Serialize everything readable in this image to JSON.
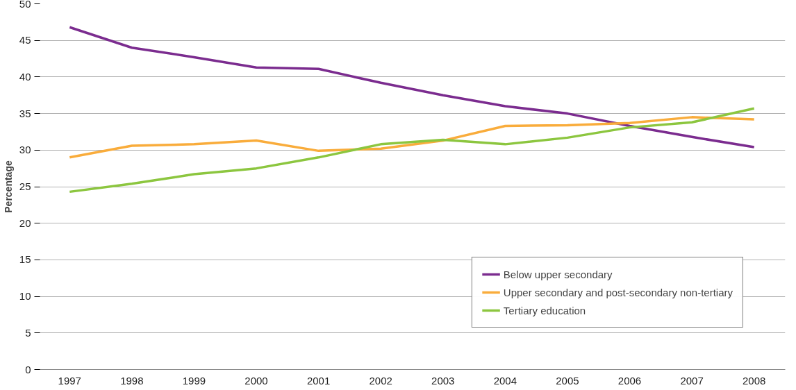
{
  "chart_data": {
    "type": "line",
    "ylabel": "Percentage",
    "categories": [
      "1997",
      "1998",
      "1999",
      "2000",
      "2001",
      "2002",
      "2003",
      "2004",
      "2005",
      "2006",
      "2007",
      "2008"
    ],
    "series": [
      {
        "name": "Below upper secondary",
        "color": "#7b2c8f",
        "values": [
          46.8,
          44.0,
          42.7,
          41.3,
          41.1,
          39.2,
          37.5,
          36.0,
          35.0,
          33.3,
          31.8,
          30.4
        ]
      },
      {
        "name": "Upper secondary and post-secondary non-tertiary",
        "color": "#f9ac3b",
        "values": [
          29.0,
          30.6,
          30.8,
          31.3,
          29.9,
          30.2,
          31.3,
          33.3,
          33.4,
          33.7,
          34.5,
          34.2
        ]
      },
      {
        "name": "Tertiary education",
        "color": "#8cc63f",
        "values": [
          24.3,
          25.4,
          26.7,
          27.5,
          29.0,
          30.8,
          31.4,
          30.8,
          31.7,
          33.1,
          33.8,
          35.7
        ]
      }
    ],
    "ylim": [
      0,
      50
    ],
    "yticks": [
      0,
      5,
      10,
      15,
      20,
      25,
      30,
      35,
      40,
      45,
      50
    ],
    "grid": "y",
    "legend": "bottom right",
    "marker": "none",
    "line_style": "solid"
  }
}
